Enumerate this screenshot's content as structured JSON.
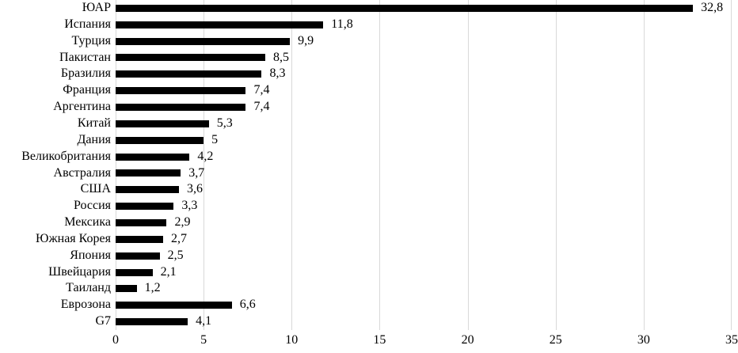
{
  "chart_data": {
    "type": "bar",
    "orientation": "horizontal",
    "title": "",
    "xlabel": "",
    "ylabel": "",
    "categories": [
      "ЮАР",
      "Испания",
      "Турция",
      "Пакистан",
      "Бразилия",
      "Франция",
      "Аргентина",
      "Китай",
      "Дания",
      "Великобритания",
      "Австралия",
      "США",
      "Россия",
      "Мексика",
      "Южная Корея",
      "Япония",
      "Швейцария",
      "Таиланд",
      "Еврозона",
      "G7"
    ],
    "values": [
      32.8,
      11.8,
      9.9,
      8.5,
      8.3,
      7.4,
      7.4,
      5.3,
      5,
      4.2,
      3.7,
      3.6,
      3.3,
      2.9,
      2.7,
      2.5,
      2.1,
      1.2,
      6.6,
      4.1
    ],
    "value_labels": [
      "32,8",
      "11,8",
      "9,9",
      "8,5",
      "8,3",
      "7,4",
      "7,4",
      "5,3",
      "5",
      "4,2",
      "3,7",
      "3,6",
      "3,3",
      "2,9",
      "2,7",
      "2,5",
      "2,1",
      "1,2",
      "6,6",
      "4,1"
    ],
    "xlim": [
      0,
      35
    ],
    "x_ticks": [
      0,
      5,
      10,
      15,
      20,
      25,
      30,
      35
    ],
    "x_tick_labels": [
      "0",
      "5",
      "10",
      "15",
      "20",
      "25",
      "30",
      "35"
    ],
    "grid": true,
    "legend": "none",
    "bar_color": "#000000",
    "gridline_color": "#d9d9d9",
    "background_color": "#ffffff",
    "text_color": "#000000"
  }
}
